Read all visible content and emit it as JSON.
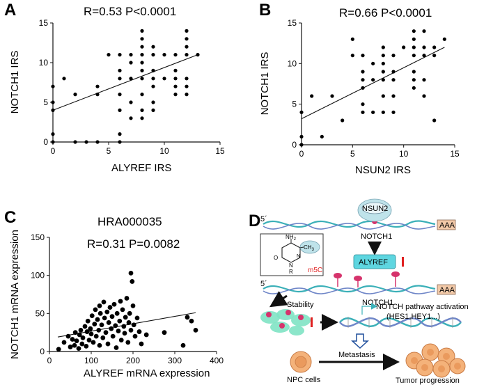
{
  "panels": {
    "a": {
      "letter": "A",
      "stats": "R=0.53  P<0.0001"
    },
    "b": {
      "letter": "B",
      "stats": "R=0.66  P<0.0001"
    },
    "c": {
      "letter": "C",
      "title": "HRA000035",
      "stats": "R=0.31  P=0.0082"
    },
    "d": {
      "letter": "D",
      "nsun2": "NSUN2",
      "prime_top": "5´",
      "prime_bottom": "5´",
      "aaa_top": "AAA",
      "aaa_bottom": "AAA",
      "notch1_top": "NOTCH1",
      "notch1_bottom": "NOTCH1",
      "alyref": "ALYREF",
      "stability": "Stability",
      "m5c": "m5C",
      "nh2": "NH",
      "nh2_sub": "2",
      "ch3": "CH",
      "ch3_sub": "3",
      "o": "O",
      "n": "N",
      "n_ring": "N",
      "r": "R",
      "pathway": "NOTCH pathway activation",
      "targets": "(HES1,HEY1...)",
      "metastasis": "Metastasis",
      "npc": "NPC cells",
      "tumor": "Tumor progression"
    }
  },
  "colors": {
    "points": "#000000",
    "dna_teal": "#3bb0b8",
    "dna_blue": "#6f86c8",
    "nsun2_fill": "#bfe3ea",
    "alyref_fill": "#5ed6e0",
    "aaa_fill": "#f2c9a8",
    "m5c_pink": "#d6336c",
    "m5c_label": "#e02020",
    "cell_fill": "#f4b27a",
    "arrow_blue": "#1f4e9c"
  },
  "chart_data": [
    {
      "type": "scatter",
      "panel": "A",
      "xlabel": "ALYREF IRS",
      "ylabel": "NOTCH1 IRS",
      "xlim": [
        0,
        15
      ],
      "ylim": [
        0,
        15
      ],
      "xticks": [
        0,
        5,
        10,
        15
      ],
      "yticks": [
        0,
        5,
        10,
        15
      ],
      "regression": {
        "x": [
          0,
          13
        ],
        "y": [
          4.0,
          11.0
        ]
      },
      "points": [
        {
          "x": 0,
          "y": 0
        },
        {
          "x": 0,
          "y": 1
        },
        {
          "x": 0,
          "y": 4
        },
        {
          "x": 0,
          "y": 5
        },
        {
          "x": 0,
          "y": 7
        },
        {
          "x": 1,
          "y": 8
        },
        {
          "x": 2,
          "y": 0
        },
        {
          "x": 2,
          "y": 6
        },
        {
          "x": 3,
          "y": 0
        },
        {
          "x": 4,
          "y": 0
        },
        {
          "x": 4,
          "y": 6
        },
        {
          "x": 4,
          "y": 7
        },
        {
          "x": 5,
          "y": 11
        },
        {
          "x": 6,
          "y": 0
        },
        {
          "x": 6,
          "y": 1
        },
        {
          "x": 6,
          "y": 4
        },
        {
          "x": 6,
          "y": 6
        },
        {
          "x": 6,
          "y": 8
        },
        {
          "x": 6,
          "y": 9
        },
        {
          "x": 6,
          "y": 11
        },
        {
          "x": 7,
          "y": 3
        },
        {
          "x": 7,
          "y": 5
        },
        {
          "x": 7,
          "y": 8
        },
        {
          "x": 7,
          "y": 10
        },
        {
          "x": 7,
          "y": 11
        },
        {
          "x": 8,
          "y": 3
        },
        {
          "x": 8,
          "y": 4
        },
        {
          "x": 8,
          "y": 6
        },
        {
          "x": 8,
          "y": 8
        },
        {
          "x": 8,
          "y": 9
        },
        {
          "x": 8,
          "y": 10
        },
        {
          "x": 8,
          "y": 11
        },
        {
          "x": 8,
          "y": 12
        },
        {
          "x": 8,
          "y": 13
        },
        {
          "x": 8,
          "y": 14
        },
        {
          "x": 9,
          "y": 4
        },
        {
          "x": 9,
          "y": 5
        },
        {
          "x": 9,
          "y": 7
        },
        {
          "x": 9,
          "y": 8
        },
        {
          "x": 9,
          "y": 9
        },
        {
          "x": 9,
          "y": 11
        },
        {
          "x": 9,
          "y": 12
        },
        {
          "x": 10,
          "y": 8
        },
        {
          "x": 10,
          "y": 11
        },
        {
          "x": 11,
          "y": 6
        },
        {
          "x": 11,
          "y": 7
        },
        {
          "x": 11,
          "y": 8
        },
        {
          "x": 11,
          "y": 9
        },
        {
          "x": 11,
          "y": 11
        },
        {
          "x": 12,
          "y": 6
        },
        {
          "x": 12,
          "y": 7
        },
        {
          "x": 12,
          "y": 8
        },
        {
          "x": 12,
          "y": 11
        },
        {
          "x": 12,
          "y": 12
        },
        {
          "x": 12,
          "y": 13
        },
        {
          "x": 12,
          "y": 14
        },
        {
          "x": 13,
          "y": 11
        }
      ]
    },
    {
      "type": "scatter",
      "panel": "B",
      "xlabel": "NSUN2 IRS",
      "ylabel": "NOTCH1 IRS",
      "xlim": [
        0,
        15
      ],
      "ylim": [
        0,
        15
      ],
      "xticks": [
        0,
        5,
        10,
        15
      ],
      "yticks": [
        0,
        5,
        10,
        15
      ],
      "regression": {
        "x": [
          0,
          14
        ],
        "y": [
          3.2,
          12.0
        ]
      },
      "points": [
        {
          "x": 0,
          "y": 0
        },
        {
          "x": 0,
          "y": 1
        },
        {
          "x": 0,
          "y": 4
        },
        {
          "x": 1,
          "y": 6
        },
        {
          "x": 2,
          "y": 1
        },
        {
          "x": 3,
          "y": 6
        },
        {
          "x": 4,
          "y": 3
        },
        {
          "x": 5,
          "y": 11
        },
        {
          "x": 5,
          "y": 13
        },
        {
          "x": 6,
          "y": 4
        },
        {
          "x": 6,
          "y": 5
        },
        {
          "x": 6,
          "y": 7
        },
        {
          "x": 6,
          "y": 8
        },
        {
          "x": 6,
          "y": 9
        },
        {
          "x": 6,
          "y": 11
        },
        {
          "x": 7,
          "y": 4
        },
        {
          "x": 7,
          "y": 8
        },
        {
          "x": 7,
          "y": 10
        },
        {
          "x": 8,
          "y": 4
        },
        {
          "x": 8,
          "y": 6
        },
        {
          "x": 8,
          "y": 8
        },
        {
          "x": 8,
          "y": 9
        },
        {
          "x": 8,
          "y": 10
        },
        {
          "x": 8,
          "y": 11
        },
        {
          "x": 8,
          "y": 12
        },
        {
          "x": 9,
          "y": 4
        },
        {
          "x": 9,
          "y": 6
        },
        {
          "x": 9,
          "y": 8
        },
        {
          "x": 9,
          "y": 9
        },
        {
          "x": 9,
          "y": 11
        },
        {
          "x": 10,
          "y": 12
        },
        {
          "x": 11,
          "y": 7
        },
        {
          "x": 11,
          "y": 8
        },
        {
          "x": 11,
          "y": 9
        },
        {
          "x": 11,
          "y": 11
        },
        {
          "x": 11,
          "y": 12
        },
        {
          "x": 11,
          "y": 13
        },
        {
          "x": 11,
          "y": 14
        },
        {
          "x": 12,
          "y": 6
        },
        {
          "x": 12,
          "y": 8
        },
        {
          "x": 12,
          "y": 11
        },
        {
          "x": 12,
          "y": 12
        },
        {
          "x": 12,
          "y": 14
        },
        {
          "x": 13,
          "y": 3
        },
        {
          "x": 13,
          "y": 11
        },
        {
          "x": 13,
          "y": 12
        },
        {
          "x": 14,
          "y": 13
        }
      ]
    },
    {
      "type": "scatter",
      "panel": "C",
      "title": "HRA000035",
      "xlabel": "ALYREF mRNA expression",
      "ylabel": "NOTCH1 mRNA expression",
      "xlim": [
        0,
        400
      ],
      "ylim": [
        0,
        150
      ],
      "xticks": [
        0,
        100,
        200,
        300,
        400
      ],
      "yticks": [
        0,
        50,
        100,
        150
      ],
      "regression": {
        "x": [
          20,
          350
        ],
        "y": [
          19,
          51
        ]
      },
      "points": [
        {
          "x": 22,
          "y": 3
        },
        {
          "x": 35,
          "y": 12
        },
        {
          "x": 45,
          "y": 20
        },
        {
          "x": 50,
          "y": 6
        },
        {
          "x": 55,
          "y": 16
        },
        {
          "x": 60,
          "y": 8
        },
        {
          "x": 62,
          "y": 25
        },
        {
          "x": 65,
          "y": 14
        },
        {
          "x": 70,
          "y": 4
        },
        {
          "x": 72,
          "y": 22
        },
        {
          "x": 75,
          "y": 28
        },
        {
          "x": 78,
          "y": 10
        },
        {
          "x": 80,
          "y": 18
        },
        {
          "x": 85,
          "y": 33
        },
        {
          "x": 88,
          "y": 7
        },
        {
          "x": 90,
          "y": 26
        },
        {
          "x": 92,
          "y": 40
        },
        {
          "x": 95,
          "y": 15
        },
        {
          "x": 98,
          "y": 30
        },
        {
          "x": 100,
          "y": 23
        },
        {
          "x": 102,
          "y": 47
        },
        {
          "x": 105,
          "y": 12
        },
        {
          "x": 108,
          "y": 36
        },
        {
          "x": 110,
          "y": 55
        },
        {
          "x": 112,
          "y": 20
        },
        {
          "x": 115,
          "y": 42
        },
        {
          "x": 118,
          "y": 28
        },
        {
          "x": 120,
          "y": 8
        },
        {
          "x": 120,
          "y": 60
        },
        {
          "x": 122,
          "y": 50
        },
        {
          "x": 125,
          "y": 35
        },
        {
          "x": 128,
          "y": 18
        },
        {
          "x": 130,
          "y": 65
        },
        {
          "x": 132,
          "y": 44
        },
        {
          "x": 135,
          "y": 25
        },
        {
          "x": 138,
          "y": 52
        },
        {
          "x": 140,
          "y": 10
        },
        {
          "x": 142,
          "y": 38
        },
        {
          "x": 145,
          "y": 58
        },
        {
          "x": 148,
          "y": 30
        },
        {
          "x": 150,
          "y": 46
        },
        {
          "x": 152,
          "y": 20
        },
        {
          "x": 155,
          "y": 62
        },
        {
          "x": 158,
          "y": 34
        },
        {
          "x": 160,
          "y": 5
        },
        {
          "x": 162,
          "y": 50
        },
        {
          "x": 165,
          "y": 27
        },
        {
          "x": 168,
          "y": 40
        },
        {
          "x": 170,
          "y": 66
        },
        {
          "x": 172,
          "y": 15
        },
        {
          "x": 175,
          "y": 55
        },
        {
          "x": 178,
          "y": 33
        },
        {
          "x": 180,
          "y": 24
        },
        {
          "x": 182,
          "y": 45
        },
        {
          "x": 185,
          "y": 70
        },
        {
          "x": 188,
          "y": 12
        },
        {
          "x": 190,
          "y": 38
        },
        {
          "x": 192,
          "y": 50
        },
        {
          "x": 195,
          "y": 103
        },
        {
          "x": 195,
          "y": 28
        },
        {
          "x": 198,
          "y": 92
        },
        {
          "x": 200,
          "y": 60
        },
        {
          "x": 202,
          "y": 35
        },
        {
          "x": 205,
          "y": 20
        },
        {
          "x": 210,
          "y": 44
        },
        {
          "x": 215,
          "y": 26
        },
        {
          "x": 220,
          "y": 10
        },
        {
          "x": 232,
          "y": 22
        },
        {
          "x": 275,
          "y": 25
        },
        {
          "x": 320,
          "y": 8
        },
        {
          "x": 330,
          "y": 45
        },
        {
          "x": 340,
          "y": 40
        },
        {
          "x": 350,
          "y": 28
        }
      ]
    }
  ]
}
